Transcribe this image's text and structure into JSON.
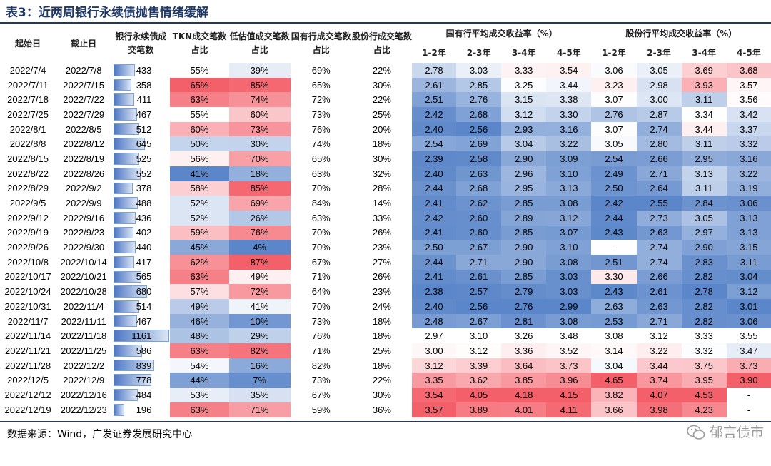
{
  "title": "表3：近两周银行永续债抛售情绪缓解",
  "headers": {
    "start": "起始日",
    "end": "截止日",
    "count": "银行永续债成交笔数",
    "tkn": "TKN成交笔数占比",
    "low": "低估值成交笔数占比",
    "state": "国有行成交笔数占比",
    "share": "股份行成交笔数占比",
    "state_group": "国有行平均成交收益率（%）",
    "share_group": "股份行平均成交收益率（%）",
    "terms": [
      "1-2年",
      "2-3年",
      "3-4年",
      "4-5年"
    ]
  },
  "rows": [
    {
      "start": "2022/7/4",
      "end": "2022/7/8",
      "count": 433,
      "tkn": "55%",
      "low": "39%",
      "state": "69%",
      "share": "22%",
      "s": [
        "2.78",
        "3.03",
        "3.33",
        "3.54"
      ],
      "j": [
        "3.06",
        "3.05",
        "3.69",
        "3.68"
      ]
    },
    {
      "start": "2022/7/11",
      "end": "2022/7/15",
      "count": 358,
      "tkn": "65%",
      "low": "85%",
      "state": "65%",
      "share": "30%",
      "s": [
        "2.61",
        "2.85",
        "3.25",
        "3.44"
      ],
      "j": [
        "3.23",
        "2.98",
        "3.93",
        "3.57"
      ]
    },
    {
      "start": "2022/7/18",
      "end": "2022/7/22",
      "count": 411,
      "tkn": "63%",
      "low": "74%",
      "state": "72%",
      "share": "22%",
      "s": [
        "2.51",
        "2.76",
        "3.15",
        "3.38"
      ],
      "j": [
        "3.07",
        "3.00",
        "3.11",
        "3.56"
      ]
    },
    {
      "start": "2022/7/25",
      "end": "2022/7/29",
      "count": 467,
      "tkn": "55%",
      "low": "60%",
      "state": "73%",
      "share": "25%",
      "s": [
        "2.42",
        "2.68",
        "3.12",
        "3.30"
      ],
      "j": [
        "2.76",
        "2.87",
        "3.34",
        "3.42"
      ]
    },
    {
      "start": "2022/8/1",
      "end": "2022/8/5",
      "count": 512,
      "tkn": "60%",
      "low": "73%",
      "state": "76%",
      "share": "20%",
      "s": [
        "2.40",
        "2.56",
        "2.93",
        "3.16"
      ],
      "j": [
        "3.07",
        "2.74",
        "3.44",
        "3.37"
      ]
    },
    {
      "start": "2022/8/8",
      "end": "2022/8/12",
      "count": 645,
      "tkn": "50%",
      "low": "30%",
      "state": "74%",
      "share": "18%",
      "s": [
        "2.54",
        "2.69",
        "3.04",
        "3.22"
      ],
      "j": [
        "3.05",
        "2.80",
        "3.11",
        "3.32"
      ]
    },
    {
      "start": "2022/8/15",
      "end": "2022/8/19",
      "count": 525,
      "tkn": "56%",
      "low": "70%",
      "state": "65%",
      "share": "30%",
      "s": [
        "2.39",
        "2.58",
        "2.90",
        "3.09"
      ],
      "j": [
        "2.54",
        "2.66",
        "2.95",
        "3.16"
      ]
    },
    {
      "start": "2022/8/22",
      "end": "2022/8/26",
      "count": 552,
      "tkn": "41%",
      "low": "18%",
      "state": "63%",
      "share": "32%",
      "s": [
        "2.40",
        "2.63",
        "2.96",
        "3.10"
      ],
      "j": [
        "2.49",
        "2.71",
        "3.13",
        "3.22"
      ]
    },
    {
      "start": "2022/8/29",
      "end": "2022/9/2",
      "count": 378,
      "tkn": "58%",
      "low": "85%",
      "state": "70%",
      "share": "28%",
      "s": [
        "2.44",
        "2.68",
        "2.95",
        "3.13"
      ],
      "j": [
        "2.50",
        "2.64",
        "3.11",
        "3.19"
      ]
    },
    {
      "start": "2022/9/5",
      "end": "2022/9/9",
      "count": 488,
      "tkn": "52%",
      "low": "69%",
      "state": "84%",
      "share": "14%",
      "s": [
        "2.41",
        "2.62",
        "2.85",
        "3.08"
      ],
      "j": [
        "2.42",
        "2.55",
        "2.84",
        "3.06"
      ]
    },
    {
      "start": "2022/9/12",
      "end": "2022/9/16",
      "count": 436,
      "tkn": "52%",
      "low": "26%",
      "state": "63%",
      "share": "33%",
      "s": [
        "2.42",
        "2.60",
        "2.89",
        "3.12"
      ],
      "j": [
        "2.44",
        "2.73",
        "3.05",
        "3.13"
      ]
    },
    {
      "start": "2022/9/19",
      "end": "2022/9/23",
      "count": 402,
      "tkn": "59%",
      "low": "76%",
      "state": "70%",
      "share": "26%",
      "s": [
        "2.41",
        "2.60",
        "2.85",
        "3.07"
      ],
      "j": [
        "2.43",
        "2.63",
        "2.97",
        "3.13"
      ]
    },
    {
      "start": "2022/9/26",
      "end": "2022/9/30",
      "count": 440,
      "tkn": "45%",
      "low": "4%",
      "state": "70%",
      "share": "23%",
      "s": [
        "2.50",
        "2.67",
        "2.90",
        "3.10"
      ],
      "j": [
        "-",
        "2.74",
        "2.90",
        "3.15"
      ]
    },
    {
      "start": "2022/10/8",
      "end": "2022/10/14",
      "count": 417,
      "tkn": "62%",
      "low": "87%",
      "state": "67%",
      "share": "27%",
      "s": [
        "2.44",
        "2.71",
        "2.90",
        "3.08"
      ],
      "j": [
        "2.51",
        "2.74",
        "2.83",
        "3.11"
      ]
    },
    {
      "start": "2022/10/17",
      "end": "2022/10/21",
      "count": 565,
      "tkn": "63%",
      "low": "49%",
      "state": "71%",
      "share": "26%",
      "s": [
        "2.41",
        "2.61",
        "2.85",
        "3.03"
      ],
      "j": [
        "3.30",
        "2.66",
        "2.82",
        "3.04"
      ]
    },
    {
      "start": "2022/10/24",
      "end": "2022/10/28",
      "count": 680,
      "tkn": "57%",
      "low": "72%",
      "state": "64%",
      "share": "23%",
      "s": [
        "2.38",
        "2.57",
        "2.79",
        "3.03"
      ],
      "j": [
        "2.43",
        "2.61",
        "2.78",
        "3.12"
      ]
    },
    {
      "start": "2022/10/31",
      "end": "2022/11/4",
      "count": 514,
      "tkn": "49%",
      "low": "41%",
      "state": "70%",
      "share": "24%",
      "s": [
        "2.40",
        "2.56",
        "2.76",
        "2.99"
      ],
      "j": [
        "2.63",
        "2.63",
        "2.82",
        "3.01"
      ]
    },
    {
      "start": "2022/11/7",
      "end": "2022/11/11",
      "count": 467,
      "tkn": "46%",
      "low": "10%",
      "state": "73%",
      "share": "18%",
      "s": [
        "2.48",
        "2.67",
        "2.81",
        "3.08"
      ],
      "j": [
        "2.53",
        "2.71",
        "2.82",
        "3.06"
      ]
    },
    {
      "start": "2022/11/14",
      "end": "2022/11/18",
      "count": 1161,
      "tkn": "48%",
      "low": "29%",
      "state": "76%",
      "share": "18%",
      "s": [
        "2.97",
        "3.10",
        "3.26",
        "3.48"
      ],
      "j": [
        "3.08",
        "3.12",
        "3.33",
        "3.55"
      ]
    },
    {
      "start": "2022/11/21",
      "end": "2022/11/25",
      "count": 586,
      "tkn": "63%",
      "low": "82%",
      "state": "71%",
      "share": "25%",
      "s": [
        "3.00",
        "3.12",
        "3.36",
        "3.52"
      ],
      "j": [
        "3.14",
        "3.22",
        "3.32",
        "3.47"
      ]
    },
    {
      "start": "2022/11/28",
      "end": "2022/12/2",
      "count": 839,
      "tkn": "54%",
      "low": "16%",
      "state": "82%",
      "share": "18%",
      "s": [
        "3.12",
        "3.39",
        "3.64",
        "3.73"
      ],
      "j": [
        "3.04",
        "3.44",
        "3.75",
        "3.73"
      ]
    },
    {
      "start": "2022/12/5",
      "end": "2022/12/9",
      "count": 778,
      "tkn": "44%",
      "low": "7%",
      "state": "73%",
      "share": "22%",
      "s": [
        "3.35",
        "3.62",
        "3.85",
        "3.96"
      ],
      "j": [
        "4.65",
        "3.74",
        "3.95",
        "3.90"
      ]
    },
    {
      "start": "2022/12/12",
      "end": "2022/12/16",
      "count": 484,
      "tkn": "53%",
      "low": "35%",
      "state": "67%",
      "share": "30%",
      "s": [
        "3.54",
        "4.05",
        "4.18",
        "4.15"
      ],
      "j": [
        "3.82",
        "4.07",
        "4.53",
        "-"
      ]
    },
    {
      "start": "2022/12/19",
      "end": "2022/12/23",
      "count": 196,
      "tkn": "63%",
      "low": "71%",
      "state": "59%",
      "share": "36%",
      "s": [
        "3.57",
        "3.89",
        "4.01",
        "4.11"
      ],
      "j": [
        "3.66",
        "3.98",
        "4.23",
        "-"
      ]
    }
  ],
  "scales": {
    "tkn": {
      "min": 41,
      "mid": 55,
      "max": 65
    },
    "low": {
      "min": 4,
      "mid": 45,
      "max": 87
    },
    "rate": [
      {
        "min": 2.38,
        "mid": 2.97,
        "max": 3.57
      },
      {
        "min": 2.56,
        "mid": 3.1,
        "max": 4.05
      },
      {
        "min": 2.76,
        "mid": 3.26,
        "max": 4.18
      },
      {
        "min": 2.99,
        "mid": 3.48,
        "max": 4.15
      },
      {
        "min": 2.42,
        "mid": 3.08,
        "max": 4.65
      },
      {
        "min": 2.55,
        "mid": 3.12,
        "max": 4.07
      },
      {
        "min": 2.78,
        "mid": 3.33,
        "max": 4.53
      },
      {
        "min": 3.01,
        "mid": 3.55,
        "max": 3.9
      }
    ],
    "count_max": 1161
  },
  "colors": {
    "blue": "#5b86c9",
    "white": "#ffffff",
    "red": "#f4606a",
    "title": "#1f3864"
  },
  "source": "数据来源：Wind，广发证券发展研究中心",
  "watermark": "郁言债市",
  "watermark_icon": "wechat-icon"
}
